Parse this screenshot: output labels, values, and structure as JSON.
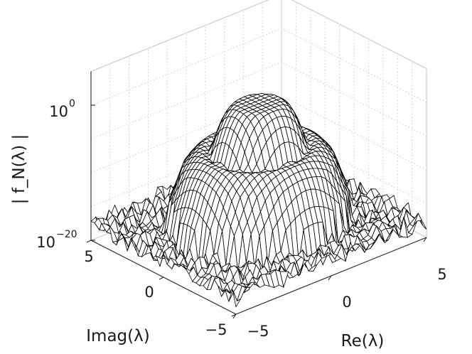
{
  "chart_data": {
    "type": "surface",
    "zlabel": "| f_N(λ) |",
    "xlabel": "Re(λ)",
    "ylabel": "Imag(λ)",
    "xlim": [
      -5,
      5
    ],
    "ylim": [
      -5,
      5
    ],
    "zscale": "log",
    "zlim_log10": [
      -20,
      0
    ],
    "grid": true,
    "mesh_color": "#000000",
    "xticks": [
      {
        "value": -5,
        "label": "−5"
      },
      {
        "value": 0,
        "label": "0"
      },
      {
        "value": 5,
        "label": "5"
      }
    ],
    "yticks": [
      {
        "value": -5,
        "label": "−5"
      },
      {
        "value": 0,
        "label": "0"
      },
      {
        "value": 5,
        "label": "5"
      }
    ],
    "zticks": [
      {
        "value_log10": 0,
        "base": "10",
        "exponent": "0"
      },
      {
        "value_log10": -20,
        "base": "10",
        "exponent": "−20"
      }
    ],
    "surface": {
      "grid_min": -5,
      "grid_max": 5,
      "grid_lines": 41,
      "peak_log10": 0,
      "plateau_radius": 0.9,
      "flank_width": 1.3,
      "shoulder_log10": -11,
      "floor_log10": -17.5,
      "floor_noise": 1.4
    }
  }
}
